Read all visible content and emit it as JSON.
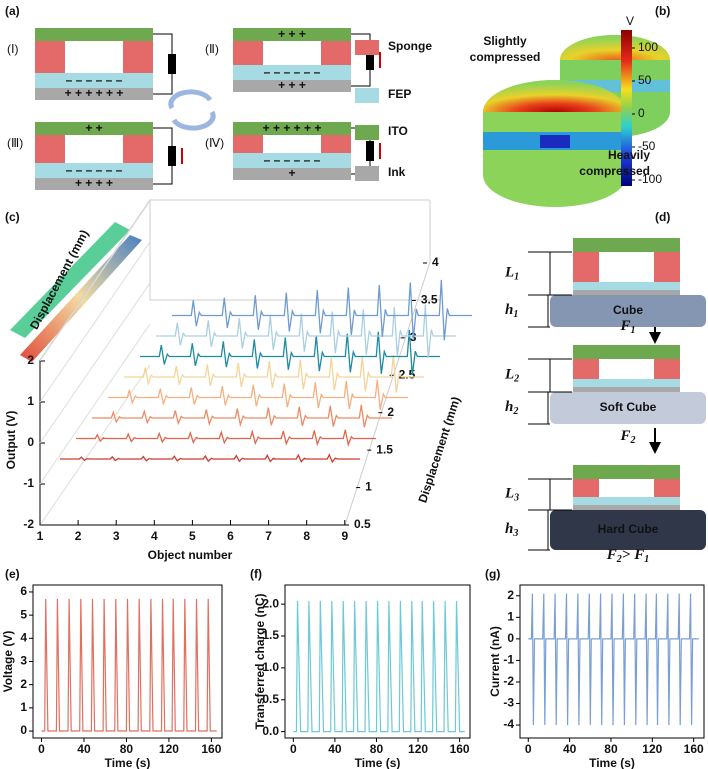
{
  "panel_labels": [
    "(a)",
    "(b)",
    "(c)",
    "(d)",
    "(e)",
    "(f)",
    "(g)"
  ],
  "panel_a": {
    "states": [
      {
        "label": "(Ⅰ)",
        "mid": "– – – – – –",
        "bottom": "+ + + + + +"
      },
      {
        "label": "(Ⅱ)",
        "top": "+ + +",
        "mid": "– – – – – –",
        "bottom": "+ + +"
      },
      {
        "label": "(Ⅲ)",
        "top": "+ +",
        "mid": "– – – – – –",
        "bottom": "+ + + +"
      },
      {
        "label": "(Ⅳ)",
        "top": "+ + + + + +",
        "mid": "– – – – – –",
        "bottom": "+"
      }
    ],
    "legend": [
      {
        "name": "Sponge",
        "color": "#e46a6a"
      },
      {
        "name": "FEP",
        "color": "#a6dbe4"
      },
      {
        "name": "ITO",
        "color": "#6fa94f"
      },
      {
        "name": "Ink",
        "color": "#a8a8a8"
      }
    ]
  },
  "panel_b": {
    "slight": [
      "Slightly",
      "compressed"
    ],
    "heavy": [
      "Heavily",
      "compressed"
    ],
    "unit": "V",
    "ticks": [
      100,
      50,
      0,
      -50,
      -100
    ]
  },
  "panel_c": {
    "y_label": "Output (V)",
    "x_label": "Object number",
    "z_label": "Displacement (mm)",
    "inset_label": "Displacement (mm)",
    "yticks": [
      -2,
      -1,
      0,
      1,
      2
    ],
    "xticks": [
      1,
      2,
      3,
      4,
      5,
      6,
      7,
      8,
      9
    ],
    "zticks": [
      0.5,
      1,
      1.5,
      2,
      2.5,
      3,
      3.5,
      4
    ]
  },
  "panel_d": {
    "blocks": [
      {
        "length": {
          "symbol": "L",
          "sub": "1"
        },
        "height": {
          "symbol": "h",
          "sub": "1"
        },
        "cube": "Cube"
      },
      {
        "length": {
          "symbol": "L",
          "sub": "2"
        },
        "height": {
          "symbol": "h",
          "sub": "2"
        },
        "cube": "Soft Cube"
      },
      {
        "length": {
          "symbol": "L",
          "sub": "3"
        },
        "height": {
          "symbol": "h",
          "sub": "3"
        },
        "cube": "Hard Cube"
      }
    ],
    "forces": [
      {
        "symbol": "F",
        "sub": "1"
      },
      {
        "symbol": "F",
        "sub": "2"
      }
    ],
    "relation": {
      "left": {
        "symbol": "F",
        "sub": "2"
      },
      "op": ">",
      "right": {
        "symbol": "F",
        "sub": "1"
      }
    }
  },
  "chart_data": [
    {
      "type": "line",
      "x_label": "Time (s)",
      "y_label": "Voltage (V)",
      "color": "#e07060",
      "xlim": [
        -8,
        170
      ],
      "ylim": [
        -0.3,
        6.3
      ],
      "xticks": [
        0,
        40,
        80,
        120,
        160
      ],
      "yticks": [
        0,
        1,
        2,
        3,
        4,
        5,
        6
      ],
      "x": [
        0,
        3,
        4,
        6,
        14,
        15,
        17,
        25,
        26,
        28,
        36,
        37,
        39,
        47,
        48,
        50,
        58,
        59,
        61,
        69,
        70,
        72,
        80,
        81,
        83,
        91,
        92,
        94,
        102,
        103,
        105,
        113,
        114,
        116,
        123,
        124,
        126,
        134,
        135,
        137,
        145,
        146,
        148,
        156,
        157,
        159,
        165
      ],
      "values": [
        0,
        0,
        5.7,
        0,
        0,
        5.7,
        0,
        0,
        5.7,
        0,
        0,
        5.7,
        0,
        0,
        5.7,
        0,
        0,
        5.7,
        0,
        0,
        5.7,
        0,
        0,
        5.7,
        0,
        0,
        5.7,
        0,
        0,
        5.7,
        0,
        0,
        5.7,
        0,
        0,
        5.7,
        0,
        0,
        5.7,
        0,
        0,
        5.7,
        0,
        0,
        5.7,
        0,
        0
      ]
    },
    {
      "type": "line",
      "x_label": "Time (s)",
      "y_label": "Transferred charge (nC)",
      "color": "#6cc9d6",
      "xlim": [
        -8,
        170
      ],
      "ylim": [
        -0.1,
        2.3
      ],
      "xticks": [
        0,
        40,
        80,
        120,
        160
      ],
      "yticks": [
        {
          "value": 0,
          "label": "0.0"
        },
        {
          "value": 0.5,
          "label": "0.5"
        },
        {
          "value": 1,
          "label": "1.0"
        },
        {
          "value": 1.5,
          "label": "1.5"
        },
        {
          "value": 2,
          "label": "2.0"
        }
      ],
      "x": [
        0,
        3,
        4,
        7,
        14,
        15,
        18,
        25,
        26,
        29,
        36,
        37,
        40,
        47,
        48,
        51,
        58,
        59,
        62,
        69,
        70,
        73,
        80,
        81,
        84,
        91,
        92,
        95,
        102,
        103,
        106,
        113,
        114,
        117,
        123,
        124,
        127,
        134,
        135,
        138,
        145,
        146,
        149,
        156,
        157,
        160,
        165
      ],
      "values": [
        0,
        0,
        2.05,
        0,
        0,
        2.05,
        0,
        0,
        2.05,
        0,
        0,
        2.05,
        0,
        0,
        2.05,
        0,
        0,
        2.05,
        0,
        0,
        2.05,
        0,
        0,
        2.05,
        0,
        0,
        2.05,
        0,
        0,
        2.05,
        0,
        0,
        2.05,
        0,
        0,
        2.05,
        0,
        0,
        2.05,
        0,
        0,
        2.05,
        0,
        0,
        2.05,
        0,
        0
      ]
    },
    {
      "type": "line",
      "x_label": "Time (s)",
      "y_label": "Current (nA)",
      "color": "#7b9fd4",
      "xlim": [
        -8,
        170
      ],
      "ylim": [
        -4.6,
        2.5
      ],
      "xticks": [
        0,
        40,
        80,
        120,
        160
      ],
      "yticks": [
        -4,
        -3,
        -2,
        -1,
        0,
        1,
        2
      ],
      "x": [
        0,
        3,
        4,
        5,
        6,
        14,
        15,
        16,
        17,
        25,
        26,
        27,
        28,
        36,
        37,
        38,
        39,
        47,
        48,
        49,
        50,
        58,
        59,
        60,
        61,
        69,
        70,
        71,
        72,
        80,
        81,
        82,
        83,
        91,
        92,
        93,
        94,
        102,
        103,
        104,
        105,
        113,
        114,
        115,
        116,
        123,
        124,
        125,
        126,
        134,
        135,
        136,
        137,
        145,
        146,
        147,
        148,
        156,
        157,
        158,
        159,
        165
      ],
      "values": [
        0,
        0,
        2.1,
        -4,
        0,
        0,
        2.1,
        -4,
        0,
        0,
        2.1,
        -4,
        0,
        0,
        2.1,
        -4,
        0,
        0,
        2.1,
        -4,
        0,
        0,
        2.1,
        -4,
        0,
        0,
        2.1,
        -4,
        0,
        0,
        2.1,
        -4,
        0,
        0,
        2.1,
        -4,
        0,
        0,
        2.1,
        -4,
        0,
        0,
        2.1,
        -4,
        0,
        0,
        2.1,
        -4,
        0,
        0,
        2.1,
        -4,
        0,
        0,
        2.1,
        -4,
        0,
        0,
        2.1,
        -4,
        0,
        0
      ]
    }
  ]
}
